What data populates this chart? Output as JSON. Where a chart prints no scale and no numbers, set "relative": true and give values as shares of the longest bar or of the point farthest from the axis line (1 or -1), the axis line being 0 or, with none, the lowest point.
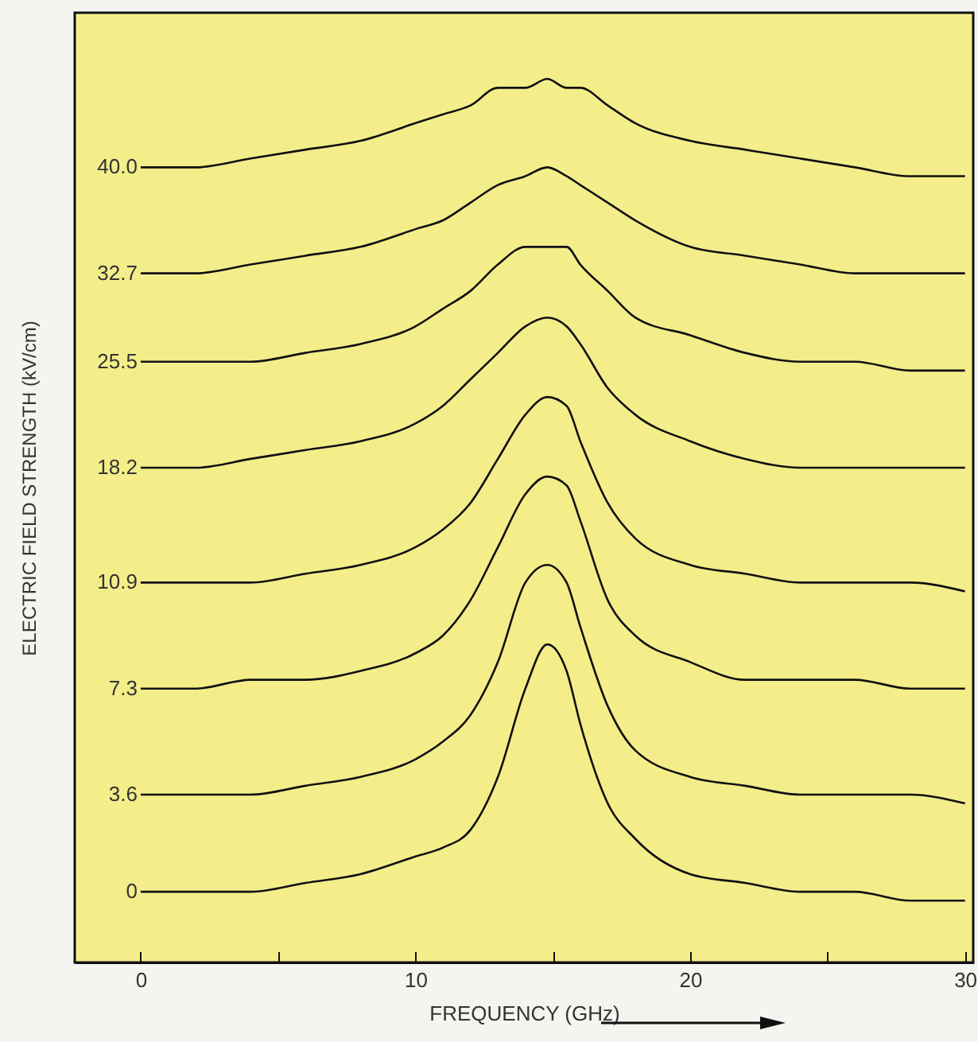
{
  "chart_data": {
    "type": "line",
    "relative": true,
    "xlabel": "FREQUENCY  (GHz)",
    "ylabel": "ELECTRIC FIELD STRENGTH (kV/cm)",
    "x": [
      0,
      2,
      4,
      6,
      8,
      10,
      11,
      12,
      13,
      14,
      14.8,
      15.5,
      16,
      17,
      18,
      20,
      22,
      24,
      26,
      28,
      30
    ],
    "xlim": [
      -2.4,
      30.3
    ],
    "xticks": [
      0,
      {
        "value": 5,
        "label": null
      },
      10,
      {
        "value": 15,
        "label": null
      },
      20,
      {
        "value": 25,
        "label": null
      },
      30
    ],
    "marker": "none",
    "line_style": "solid",
    "series": [
      {
        "name": "0",
        "color": "#111111",
        "values": [
          0.08,
          0.08,
          0.08,
          0.09,
          0.1,
          0.12,
          0.13,
          0.15,
          0.21,
          0.31,
          0.36,
          0.33,
          0.27,
          0.18,
          0.14,
          0.1,
          0.09,
          0.08,
          0.08,
          0.07,
          0.07
        ]
      },
      {
        "name": "3.6",
        "color": "#111111",
        "values": [
          0.19,
          0.19,
          0.19,
          0.2,
          0.21,
          0.23,
          0.25,
          0.28,
          0.34,
          0.43,
          0.45,
          0.43,
          0.38,
          0.29,
          0.24,
          0.21,
          0.2,
          0.19,
          0.19,
          0.19,
          0.18
        ]
      },
      {
        "name": "7.3",
        "color": "#111111",
        "values": [
          0.31,
          0.31,
          0.32,
          0.32,
          0.33,
          0.35,
          0.37,
          0.41,
          0.47,
          0.53,
          0.55,
          0.54,
          0.5,
          0.41,
          0.37,
          0.34,
          0.32,
          0.32,
          0.32,
          0.31,
          0.31
        ]
      },
      {
        "name": "10.9",
        "color": "#111111",
        "values": [
          0.43,
          0.43,
          0.43,
          0.44,
          0.45,
          0.47,
          0.49,
          0.52,
          0.57,
          0.62,
          0.64,
          0.63,
          0.59,
          0.52,
          0.48,
          0.45,
          0.44,
          0.43,
          0.43,
          0.43,
          0.42
        ]
      },
      {
        "name": "18.2",
        "color": "#111111",
        "values": [
          0.56,
          0.56,
          0.57,
          0.58,
          0.59,
          0.61,
          0.63,
          0.66,
          0.69,
          0.72,
          0.73,
          0.72,
          0.7,
          0.65,
          0.62,
          0.59,
          0.57,
          0.56,
          0.56,
          0.56,
          0.56
        ]
      },
      {
        "name": "25.5",
        "color": "#111111",
        "values": [
          0.68,
          0.68,
          0.68,
          0.69,
          0.7,
          0.72,
          0.74,
          0.76,
          0.79,
          0.81,
          0.81,
          0.81,
          0.79,
          0.76,
          0.73,
          0.71,
          0.69,
          0.68,
          0.68,
          0.67,
          0.67
        ]
      },
      {
        "name": "32.7",
        "color": "#111111",
        "values": [
          0.78,
          0.78,
          0.79,
          0.8,
          0.81,
          0.83,
          0.84,
          0.86,
          0.88,
          0.89,
          0.9,
          0.89,
          0.88,
          0.86,
          0.84,
          0.81,
          0.8,
          0.79,
          0.78,
          0.78,
          0.78
        ]
      },
      {
        "name": "40.0",
        "color": "#111111",
        "values": [
          0.9,
          0.9,
          0.91,
          0.92,
          0.93,
          0.95,
          0.96,
          0.97,
          0.99,
          0.99,
          1.0,
          0.99,
          0.99,
          0.97,
          0.95,
          0.93,
          0.92,
          0.91,
          0.9,
          0.89,
          0.89
        ]
      }
    ]
  }
}
